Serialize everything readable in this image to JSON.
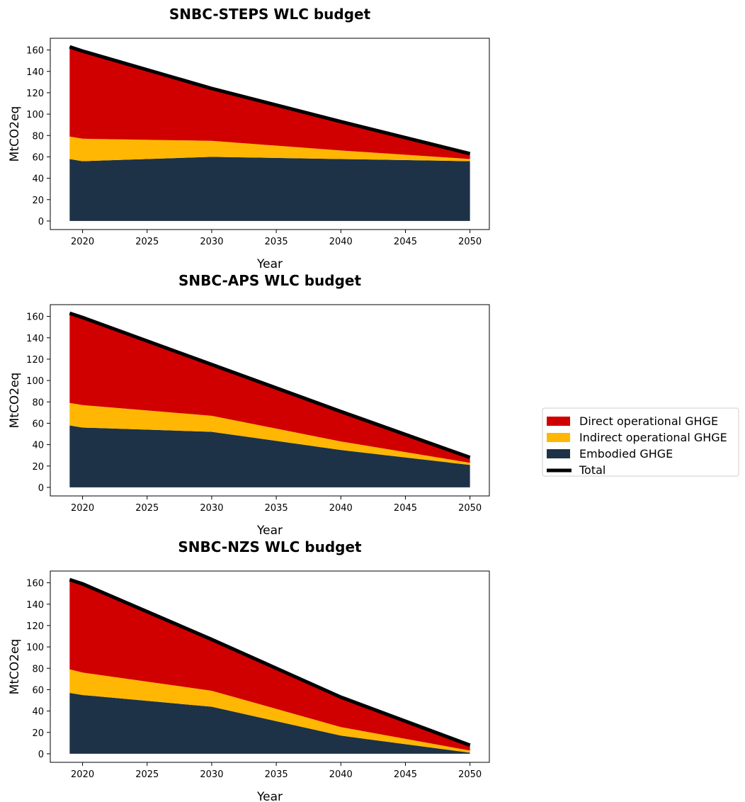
{
  "chart_data": [
    {
      "type": "area",
      "title": "SNBC-STEPS WLC budget",
      "xlabel": "Year",
      "ylabel": "MtCO2eq",
      "xlim": [
        2017.5,
        2051.5
      ],
      "ylim": [
        -8,
        171
      ],
      "xticks": [
        2020,
        2025,
        2030,
        2035,
        2040,
        2045,
        2050
      ],
      "yticks": [
        0,
        20,
        40,
        60,
        80,
        100,
        120,
        140,
        160
      ],
      "x": [
        2019,
        2020,
        2030,
        2040,
        2050
      ],
      "stacked": true,
      "series": [
        {
          "name": "Embodied GHGE",
          "color": "#1d3247",
          "values": [
            58,
            56,
            60,
            58,
            56
          ]
        },
        {
          "name": "Indirect operational GHGE",
          "color": "#ffb703",
          "values": [
            21,
            21,
            15,
            8,
            2
          ]
        },
        {
          "name": "Direct operational GHGE",
          "color": "#d00000",
          "values": [
            84,
            82,
            49,
            27,
            5
          ]
        }
      ],
      "total": {
        "name": "Total",
        "color": "#000000",
        "values": [
          163,
          159,
          124,
          93,
          63
        ]
      }
    },
    {
      "type": "area",
      "title": "SNBC-APS WLC budget",
      "xlabel": "Year",
      "ylabel": "MtCO2eq",
      "xlim": [
        2017.5,
        2051.5
      ],
      "ylim": [
        -8,
        171
      ],
      "xticks": [
        2020,
        2025,
        2030,
        2035,
        2040,
        2045,
        2050
      ],
      "yticks": [
        0,
        20,
        40,
        60,
        80,
        100,
        120,
        140,
        160
      ],
      "x": [
        2019,
        2020,
        2030,
        2040,
        2050
      ],
      "stacked": true,
      "series": [
        {
          "name": "Embodied GHGE",
          "color": "#1d3247",
          "values": [
            58,
            56,
            52,
            35,
            21
          ]
        },
        {
          "name": "Indirect operational GHGE",
          "color": "#ffb703",
          "values": [
            21,
            21,
            15,
            8,
            2
          ]
        },
        {
          "name": "Direct operational GHGE",
          "color": "#d00000",
          "values": [
            84,
            82,
            48,
            28,
            5
          ]
        }
      ],
      "total": {
        "name": "Total",
        "color": "#000000",
        "values": [
          163,
          159,
          115,
          71,
          28
        ]
      }
    },
    {
      "type": "area",
      "title": "SNBC-NZS WLC budget",
      "xlabel": "Year",
      "ylabel": "MtCO2eq",
      "xlim": [
        2017.5,
        2051.5
      ],
      "ylim": [
        -8,
        171
      ],
      "xticks": [
        2020,
        2025,
        2030,
        2035,
        2040,
        2045,
        2050
      ],
      "yticks": [
        0,
        20,
        40,
        60,
        80,
        100,
        120,
        140,
        160
      ],
      "x": [
        2019,
        2020,
        2030,
        2040,
        2050
      ],
      "stacked": true,
      "series": [
        {
          "name": "Embodied GHGE",
          "color": "#1d3247",
          "values": [
            57,
            55,
            44,
            17,
            1
          ]
        },
        {
          "name": "Indirect operational GHGE",
          "color": "#ffb703",
          "values": [
            22,
            21,
            15,
            8,
            2
          ]
        },
        {
          "name": "Direct operational GHGE",
          "color": "#d00000",
          "values": [
            84,
            83,
            48,
            28,
            5
          ]
        }
      ],
      "total": {
        "name": "Total",
        "color": "#000000",
        "values": [
          163,
          159,
          107,
          53,
          8
        ]
      }
    }
  ],
  "legend": {
    "placement": "center-right",
    "items": [
      {
        "label": "Direct operational GHGE",
        "color": "#d00000",
        "kind": "patch"
      },
      {
        "label": "Indirect operational GHGE",
        "color": "#ffb703",
        "kind": "patch"
      },
      {
        "label": "Embodied GHGE",
        "color": "#1d3247",
        "kind": "patch"
      },
      {
        "label": "Total",
        "color": "#000000",
        "kind": "line"
      }
    ]
  }
}
